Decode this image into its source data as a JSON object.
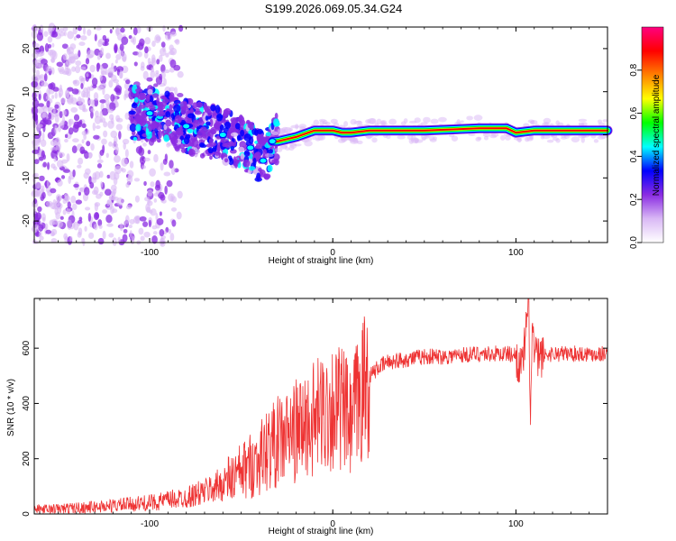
{
  "title": "S199.2026.069.05.34.G24",
  "chart_data": [
    {
      "type": "heatmap",
      "name": "spectrogram",
      "xlabel": "Height of straight line (km)",
      "ylabel": "Frequency (Hz)",
      "xlim": [
        -163,
        150
      ],
      "ylim": [
        -25,
        25
      ],
      "xticks": [
        -100,
        0,
        100
      ],
      "xtick_labels": [
        "-100",
        "0",
        "100"
      ],
      "yticks": [
        -20,
        -10,
        0,
        10,
        20
      ],
      "ytick_labels": [
        "-20",
        "-10",
        "0",
        "10",
        "20"
      ],
      "ridge": {
        "x": [
          -100,
          -80,
          -60,
          -45,
          -38,
          -33,
          -30,
          -20,
          -10,
          0,
          5,
          10,
          20,
          50,
          80,
          95,
          100,
          110,
          150
        ],
        "frequency": [
          5,
          2,
          0,
          -3,
          -6,
          -1.5,
          -1.5,
          -0.5,
          1,
          1,
          0.5,
          0.5,
          1,
          1,
          1.5,
          1.5,
          0.5,
          1,
          1
        ]
      },
      "colorbar": {
        "label": "Normalized spectral amplitude",
        "range": [
          0,
          1
        ],
        "ticks": [
          0.0,
          0.2,
          0.4,
          0.6,
          0.8
        ],
        "tick_labels": [
          "0.0",
          "0.2",
          "0.4",
          "0.6",
          "0.8"
        ],
        "colors": [
          "#ffffff",
          "#d9b8f5",
          "#8a2be2",
          "#0000ff",
          "#00ffff",
          "#00ff00",
          "#ffff00",
          "#ff8000",
          "#ff0000",
          "#ff0080"
        ]
      }
    },
    {
      "type": "line",
      "name": "snr",
      "xlabel": "Height of straight line (km)",
      "ylabel": "SNR (10 * v/v)",
      "xlim": [
        -163,
        150
      ],
      "ylim": [
        0,
        780
      ],
      "xticks": [
        -100,
        0,
        100
      ],
      "xtick_labels": [
        "-100",
        "0",
        "100"
      ],
      "yticks": [
        0,
        200,
        400,
        600
      ],
      "ytick_labels": [
        "0",
        "200",
        "400",
        "600"
      ],
      "series": [
        {
          "name": "SNR",
          "color": "#ee3333",
          "x": [
            -163,
            -150,
            -140,
            -130,
            -120,
            -110,
            -100,
            -90,
            -80,
            -70,
            -60,
            -50,
            -40,
            -35,
            -30,
            -25,
            -20,
            -15,
            -10,
            -5,
            0,
            5,
            8,
            10,
            12,
            15,
            18,
            20,
            25,
            30,
            40,
            50,
            60,
            70,
            80,
            90,
            95,
            100,
            103,
            105,
            107,
            108,
            109,
            110,
            112,
            115,
            120,
            130,
            140,
            150
          ],
          "y": [
            15,
            18,
            22,
            25,
            30,
            35,
            40,
            50,
            60,
            80,
            110,
            150,
            200,
            240,
            260,
            280,
            300,
            320,
            340,
            370,
            390,
            380,
            350,
            300,
            380,
            420,
            480,
            500,
            530,
            550,
            560,
            570,
            570,
            575,
            580,
            580,
            580,
            575,
            520,
            620,
            760,
            330,
            700,
            580,
            560,
            575,
            580,
            580,
            580,
            580
          ]
        }
      ]
    }
  ]
}
